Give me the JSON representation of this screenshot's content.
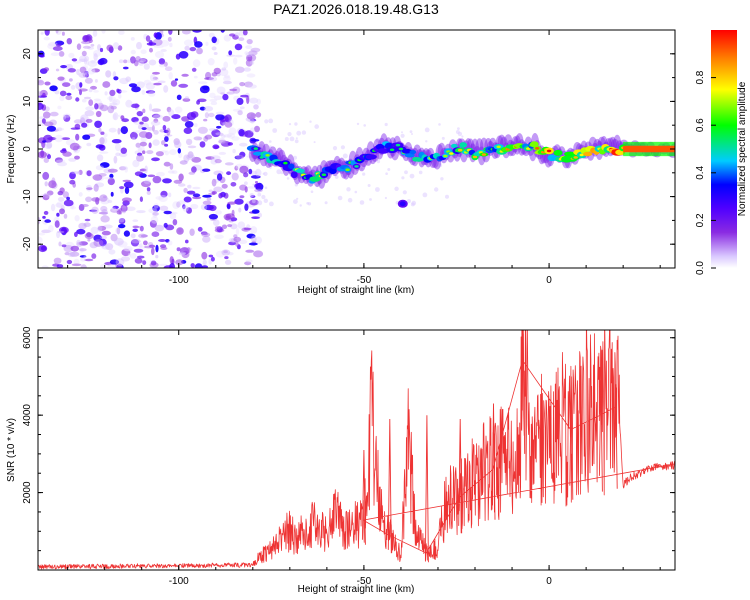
{
  "chart_data": [
    {
      "type": "heatmap",
      "title": "PAZ1.2026.018.19.48.G13",
      "xlabel": "Height of straight line (km)",
      "ylabel": "Frequency (Hz)",
      "xlim": [
        -138,
        34
      ],
      "ylim": [
        -25,
        25
      ],
      "xticks": [
        -100,
        -50,
        0
      ],
      "xtick_labels": [
        "-100",
        "-50",
        "0"
      ],
      "yticks": [
        -20,
        -10,
        0,
        10,
        20
      ],
      "ytick_labels": [
        "-20",
        "-10",
        "0",
        "10",
        "20"
      ],
      "colorbar": {
        "label": "Normalized spectral amplitude",
        "range": [
          0,
          1
        ],
        "ticks": [
          "0.0",
          "0.2",
          "0.4",
          "0.6",
          "0.8"
        ],
        "colors": [
          "#ffffff",
          "#d9c7ff",
          "#8a2be2",
          "#5000ff",
          "#0000ff",
          "#00ccff",
          "#00ff00",
          "#ffff00",
          "#ff8000",
          "#ff0000"
        ]
      },
      "ridge": {
        "height_km": [
          -80,
          -76,
          -72,
          -68,
          -64,
          -60,
          -56,
          -52,
          -48,
          -44,
          -40,
          -36,
          -32,
          -28,
          -24,
          -20,
          -16,
          -12,
          -8,
          -4,
          0,
          4,
          8,
          12,
          16,
          20,
          24,
          28,
          34
        ],
        "frequency_hz": [
          -0.5,
          -1.5,
          -3,
          -5,
          -6,
          -5,
          -4,
          -3,
          -1,
          0.5,
          0,
          -1.5,
          -2.5,
          -1,
          0.5,
          -1,
          -0.5,
          0.5,
          1,
          0.5,
          -1,
          -2,
          -1,
          0,
          0,
          0,
          0,
          0,
          0
        ],
        "amplitude": [
          0.45,
          0.5,
          0.45,
          0.5,
          0.55,
          0.5,
          0.45,
          0.4,
          0.4,
          0.45,
          0.45,
          0.5,
          0.45,
          0.5,
          0.55,
          0.55,
          0.6,
          0.65,
          0.65,
          0.7,
          0.75,
          0.75,
          0.8,
          0.85,
          0.9,
          0.95,
          0.95,
          0.95,
          0.95
        ]
      },
      "noise_region_km": [
        -138,
        -80
      ]
    },
    {
      "type": "line",
      "xlabel": "Height of straight line (km)",
      "ylabel": "SNR (10 * v/v)",
      "xlim": [
        -138,
        34
      ],
      "ylim": [
        0,
        6200
      ],
      "xticks": [
        -100,
        -50,
        0
      ],
      "xtick_labels": [
        "-100",
        "-50",
        "0"
      ],
      "yticks": [
        2000,
        4000,
        6000
      ],
      "ytick_labels": [
        "2000",
        "4000",
        "6000"
      ],
      "series": [
        {
          "name": "SNR",
          "color": "#ee3333",
          "x": [
            -138,
            -80,
            -78,
            -75,
            -72,
            -70,
            -68,
            -65,
            -62,
            -60,
            -58,
            -55,
            -50,
            -48,
            -45,
            -42,
            -40,
            -38,
            -36,
            -33,
            -30,
            -28,
            -25,
            -22,
            -20,
            -18,
            -15,
            -12,
            -10,
            -8,
            -7,
            -5,
            -2,
            0,
            3,
            5,
            8,
            10,
            13,
            15,
            18,
            19,
            20,
            22,
            25,
            28,
            34
          ],
          "y": [
            80,
            130,
            350,
            500,
            900,
            1000,
            800,
            1200,
            1100,
            900,
            1500,
            1000,
            1300,
            3800,
            1200,
            700,
            400,
            3300,
            1000,
            400,
            600,
            1700,
            1800,
            2100,
            2300,
            2500,
            2600,
            3000,
            2800,
            3100,
            6000,
            3000,
            3300,
            3200,
            3700,
            3600,
            3700,
            4500,
            3800,
            4300,
            4200,
            4000,
            2200,
            2400,
            2500,
            2650,
            2700
          ],
          "peaks": [
            {
              "x": -50,
              "y": 3100
            },
            {
              "x": -43,
              "y": 3900
            },
            {
              "x": -33,
              "y": 4000
            },
            {
              "x": -24,
              "y": 3900
            },
            {
              "x": -15,
              "y": 4300
            },
            {
              "x": -7,
              "y": 6100
            },
            {
              "x": 6,
              "y": 5000
            },
            {
              "x": 14,
              "y": 4900
            },
            {
              "x": 18,
              "y": 4800
            }
          ]
        }
      ]
    }
  ]
}
